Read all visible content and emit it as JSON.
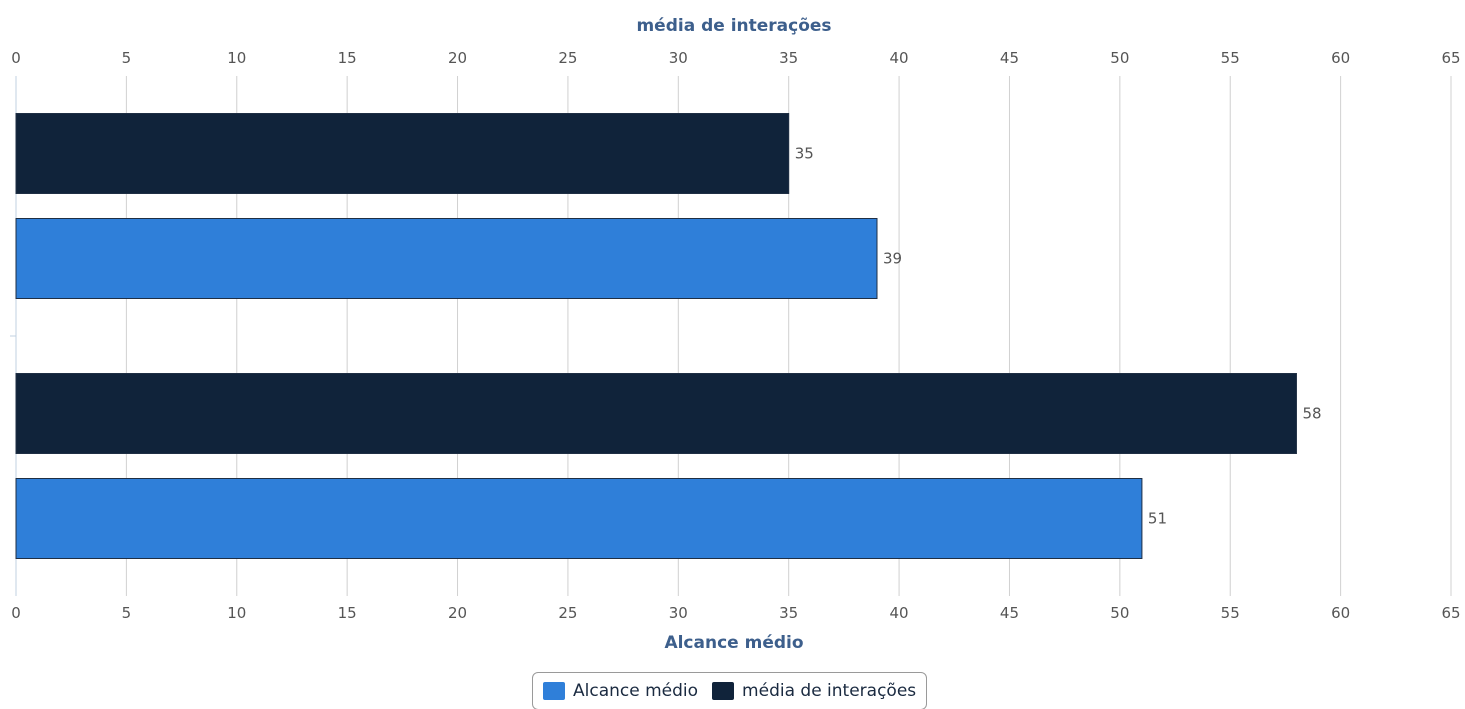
{
  "chart_data": {
    "type": "bar",
    "orientation": "horizontal",
    "categories": [
      "",
      ""
    ],
    "series": [
      {
        "name": "média de interações",
        "values": [
          35,
          58
        ],
        "display_labels": [
          "35",
          "58"
        ],
        "color": "#10233a"
      },
      {
        "name": "Alcance médio",
        "values": [
          39,
          51
        ],
        "display_labels": [
          "39",
          "51"
        ],
        "color": "#2f7fd9"
      }
    ],
    "top_axis_title": "média de interações",
    "bottom_axis_title": "Alcance médio",
    "xlim": [
      0,
      65
    ],
    "tick_values": [
      0,
      5,
      10,
      15,
      20,
      25,
      30,
      35,
      40,
      45,
      50,
      55,
      60,
      65
    ],
    "grid": true,
    "legend_position": "bottom-center"
  },
  "legend": {
    "items": [
      {
        "label": "Alcance médio",
        "color": "#2f7fd9"
      },
      {
        "label": "média de interações",
        "color": "#10233a"
      }
    ]
  }
}
